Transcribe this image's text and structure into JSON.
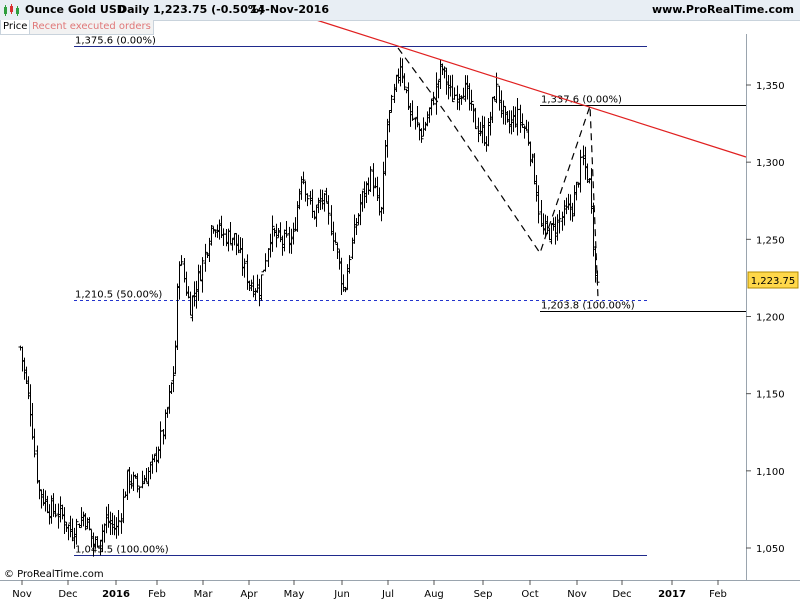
{
  "header": {
    "title": "Ounce Gold USD",
    "period": "Daily",
    "price_change": "1,223.75 (-0.50%)",
    "date": "14-Nov-2016",
    "site": "www.ProRealTime.com"
  },
  "tabs": {
    "price": "Price",
    "orders": "Recent executed orders"
  },
  "footer": {
    "copyright": "© ProRealTime.com"
  },
  "colors": {
    "candles": "#000000",
    "trendline": "#e02020",
    "fib_lines": "#1f2a8c",
    "fib_mid": "#2233cc",
    "price_tag": "#ffd84a"
  },
  "chart_data": {
    "type": "ohlc",
    "y_range": [
      1040,
      1385
    ],
    "y_ticks": [
      {
        "value": 1050,
        "label": "1,050"
      },
      {
        "value": 1100,
        "label": "1,100"
      },
      {
        "value": 1150,
        "label": "1,150"
      },
      {
        "value": 1200,
        "label": "1,200"
      },
      {
        "value": 1250,
        "label": "1,250"
      },
      {
        "value": 1300,
        "label": "1,300"
      },
      {
        "value": 1350,
        "label": "1,350"
      }
    ],
    "x_ticks": [
      {
        "label": "Nov",
        "bold": false
      },
      {
        "label": "Dec",
        "bold": false
      },
      {
        "label": "2016",
        "bold": true
      },
      {
        "label": "Feb",
        "bold": false
      },
      {
        "label": "Mar",
        "bold": false
      },
      {
        "label": "Apr",
        "bold": false
      },
      {
        "label": "May",
        "bold": false
      },
      {
        "label": "Jun",
        "bold": false
      },
      {
        "label": "Jul",
        "bold": false
      },
      {
        "label": "Aug",
        "bold": false
      },
      {
        "label": "Sep",
        "bold": false
      },
      {
        "label": "Oct",
        "bold": false
      },
      {
        "label": "Nov",
        "bold": false
      },
      {
        "label": "Dec",
        "bold": false
      },
      {
        "label": "2017",
        "bold": true
      },
      {
        "label": "Feb",
        "bold": false
      }
    ],
    "last_price": {
      "value": 1223.75,
      "label": "1,223.75"
    },
    "fib_levels": [
      {
        "value": 1375.6,
        "label": "1,375.6 (0.00%)",
        "style": "solid"
      },
      {
        "value": 1210.5,
        "label": "1,210.5 (50.00%)",
        "style": "dashed"
      },
      {
        "value": 1045.5,
        "label": "1,045.5 (100.00%)",
        "style": "solid"
      },
      {
        "value": 1337.6,
        "label": "1,337.6 (0.00%)",
        "style": "solid"
      },
      {
        "value": 1203.8,
        "label": "1,203.8 (100.00%)",
        "style": "solid"
      }
    ],
    "trend_line": {
      "from": [
        "2016-05-01",
        1405
      ],
      "to": [
        "2017-02-28",
        1302
      ]
    },
    "zigzag": [
      [
        "2016-07-06",
        1372
      ],
      [
        "2016-07-30",
        1330
      ],
      [
        "2016-10-07",
        1241
      ],
      [
        "2016-11-09",
        1336
      ],
      [
        "2016-11-14",
        1211
      ]
    ],
    "anchors": [
      {
        "date": "2015-10-29",
        "price": 1180
      },
      {
        "date": "2015-11-05",
        "price": 1140
      },
      {
        "date": "2015-11-10",
        "price": 1088
      },
      {
        "date": "2015-11-17",
        "price": 1076
      },
      {
        "date": "2015-11-25",
        "price": 1072
      },
      {
        "date": "2015-12-02",
        "price": 1060
      },
      {
        "date": "2015-12-10",
        "price": 1072
      },
      {
        "date": "2015-12-17",
        "price": 1051
      },
      {
        "date": "2015-12-25",
        "price": 1068
      },
      {
        "date": "2016-01-01",
        "price": 1062
      },
      {
        "date": "2016-01-08",
        "price": 1096
      },
      {
        "date": "2016-01-15",
        "price": 1090
      },
      {
        "date": "2016-01-25",
        "price": 1104
      },
      {
        "date": "2016-02-01",
        "price": 1128
      },
      {
        "date": "2016-02-08",
        "price": 1168
      },
      {
        "date": "2016-02-11",
        "price": 1240
      },
      {
        "date": "2016-02-18",
        "price": 1206
      },
      {
        "date": "2016-02-26",
        "price": 1232
      },
      {
        "date": "2016-03-04",
        "price": 1262
      },
      {
        "date": "2016-03-11",
        "price": 1252
      },
      {
        "date": "2016-03-18",
        "price": 1252
      },
      {
        "date": "2016-03-28",
        "price": 1222
      },
      {
        "date": "2016-04-04",
        "price": 1218
      },
      {
        "date": "2016-04-11",
        "price": 1254
      },
      {
        "date": "2016-04-19",
        "price": 1248
      },
      {
        "date": "2016-04-26",
        "price": 1250
      },
      {
        "date": "2016-05-02",
        "price": 1295
      },
      {
        "date": "2016-05-09",
        "price": 1265
      },
      {
        "date": "2016-05-16",
        "price": 1277
      },
      {
        "date": "2016-05-24",
        "price": 1248
      },
      {
        "date": "2016-05-30",
        "price": 1215
      },
      {
        "date": "2016-06-03",
        "price": 1243
      },
      {
        "date": "2016-06-10",
        "price": 1275
      },
      {
        "date": "2016-06-17",
        "price": 1292
      },
      {
        "date": "2016-06-23",
        "price": 1262
      },
      {
        "date": "2016-06-27",
        "price": 1322
      },
      {
        "date": "2016-07-01",
        "price": 1340
      },
      {
        "date": "2016-07-06",
        "price": 1365
      },
      {
        "date": "2016-07-13",
        "price": 1330
      },
      {
        "date": "2016-07-20",
        "price": 1318
      },
      {
        "date": "2016-07-27",
        "price": 1338
      },
      {
        "date": "2016-08-02",
        "price": 1362
      },
      {
        "date": "2016-08-09",
        "price": 1342
      },
      {
        "date": "2016-08-17",
        "price": 1349
      },
      {
        "date": "2016-08-25",
        "price": 1324
      },
      {
        "date": "2016-09-01",
        "price": 1315
      },
      {
        "date": "2016-09-07",
        "price": 1349
      },
      {
        "date": "2016-09-14",
        "price": 1322
      },
      {
        "date": "2016-09-21",
        "price": 1330
      },
      {
        "date": "2016-09-28",
        "price": 1318
      },
      {
        "date": "2016-10-04",
        "price": 1282
      },
      {
        "date": "2016-10-07",
        "price": 1255
      },
      {
        "date": "2016-10-14",
        "price": 1255
      },
      {
        "date": "2016-10-21",
        "price": 1265
      },
      {
        "date": "2016-10-28",
        "price": 1272
      },
      {
        "date": "2016-11-03",
        "price": 1302
      },
      {
        "date": "2016-11-08",
        "price": 1285
      },
      {
        "date": "2016-11-09",
        "price": 1275
      },
      {
        "date": "2016-11-10",
        "price": 1265
      },
      {
        "date": "2016-11-11",
        "price": 1226
      },
      {
        "date": "2016-11-14",
        "price": 1223.75
      }
    ]
  }
}
